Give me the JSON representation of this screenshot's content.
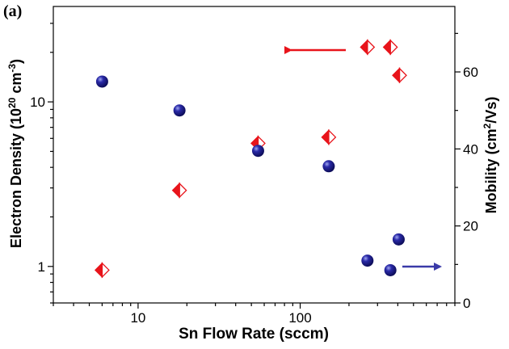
{
  "chart_data": {
    "type": "scatter",
    "panel_label": "(a)",
    "xlabel": "Sn Flow Rate (sccm)",
    "xscale": "log",
    "xlim": [
      3,
      900
    ],
    "x_ticks": [
      10,
      100
    ],
    "x_tick_labels": [
      "10",
      "100"
    ],
    "y_left": {
      "label_main": "Electron Density (10",
      "label_sup1": "20",
      "label_mid": " cm",
      "label_sup2": "-3",
      "label_end": ")",
      "scale": "log",
      "lim": [
        0.6,
        38
      ],
      "ticks": [
        1,
        10
      ],
      "tick_labels": [
        "1",
        "10"
      ]
    },
    "y_right": {
      "label_main": "Mobility (cm",
      "label_sup": "2",
      "label_end": "/Vs)",
      "scale": "linear",
      "lim": [
        0,
        77
      ],
      "ticks": [
        0,
        20,
        40,
        60
      ],
      "tick_labels": [
        "0",
        "20",
        "40",
        "60"
      ]
    },
    "series": [
      {
        "axis": "left",
        "marker": "half-filled-diamond",
        "color": "#e8141b",
        "points": [
          {
            "x": 6,
            "y": 0.95
          },
          {
            "x": 18,
            "y": 2.9
          },
          {
            "x": 55,
            "y": 5.6
          },
          {
            "x": 150,
            "y": 6.1
          },
          {
            "x": 260,
            "y": 21.5
          },
          {
            "x": 360,
            "y": 21.5
          },
          {
            "x": 410,
            "y": 14.5
          }
        ]
      },
      {
        "axis": "right",
        "marker": "sphere",
        "color": "#15158c",
        "points": [
          {
            "x": 6,
            "y": 57.5
          },
          {
            "x": 18,
            "y": 50
          },
          {
            "x": 55,
            "y": 39.5
          },
          {
            "x": 150,
            "y": 35.5
          },
          {
            "x": 260,
            "y": 11
          },
          {
            "x": 360,
            "y": 8.5
          },
          {
            "x": 405,
            "y": 16.5
          }
        ]
      }
    ],
    "annotations": [
      {
        "type": "arrow",
        "direction": "left",
        "color": "#e8141b",
        "meaning": "left axis"
      },
      {
        "type": "arrow",
        "direction": "right",
        "color": "#3a3aa8",
        "meaning": "right axis"
      }
    ]
  }
}
